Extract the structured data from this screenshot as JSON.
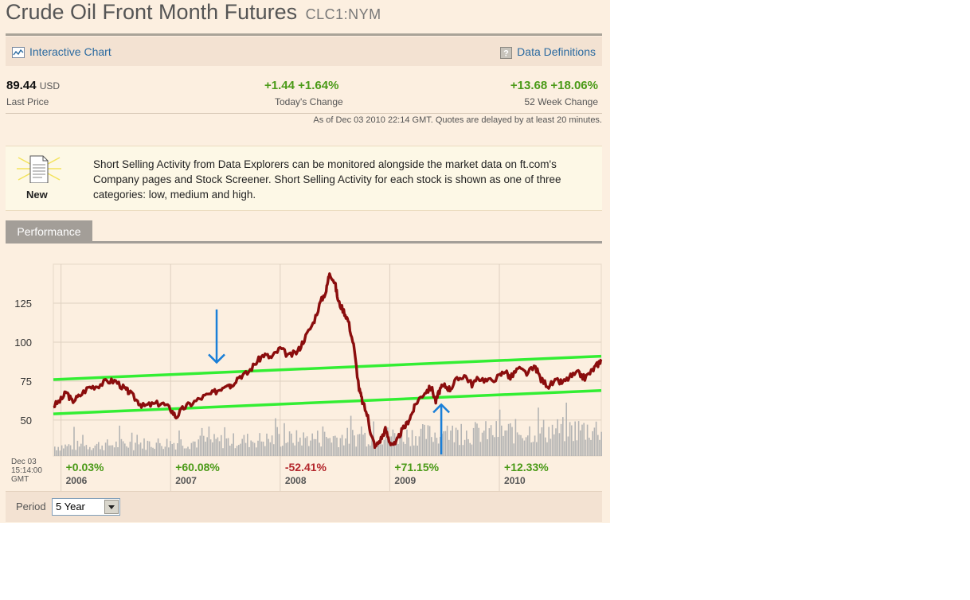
{
  "header": {
    "title": "Crude Oil Front Month Futures",
    "symbol": "CLC1:NYM"
  },
  "toolbar": {
    "interactive_chart": "Interactive Chart",
    "data_definitions": "Data Definitions"
  },
  "quote": {
    "last_price": "89.44",
    "currency": "USD",
    "last_price_label": "Last Price",
    "today_change": "+1.44 +1.64%",
    "today_change_label": "Today's Change",
    "week52_change": "+13.68 +18.06%",
    "week52_change_label": "52 Week Change",
    "as_of": "As of Dec 03 2010 22:14 GMT. Quotes are delayed by at least 20 minutes."
  },
  "news": {
    "badge": "New",
    "text": "Short Selling Activity from Data Explorers can be monitored alongside the market data on ft.com's Company pages and Stock Screener. Short Selling Activity for each stock is shown as one of three categories: low, medium and high."
  },
  "tabs": {
    "performance": "Performance"
  },
  "period": {
    "label": "Period",
    "value": "5 Year"
  },
  "colors": {
    "price_line": "#8b0d0d",
    "trend_lines": "#33ee33",
    "annotation_arrows": "#1a7fd8",
    "volume": "#b4b4b4",
    "gain": "#4a9a17",
    "loss": "#b3262b"
  },
  "chart_data": {
    "type": "line",
    "title": "",
    "xlabel": "",
    "ylabel": "",
    "ytick_labels": [
      "125",
      "100",
      "75",
      "50"
    ],
    "yticks": [
      125,
      100,
      75,
      50
    ],
    "ylim": [
      27,
      150
    ],
    "xlim": [
      2005.93,
      2010.93
    ],
    "grid": true,
    "x_start_label": [
      "Dec 03",
      "15:14:00",
      "GMT"
    ],
    "year_labels": [
      "2006",
      "2007",
      "2008",
      "2009",
      "2010"
    ],
    "year_positions": [
      2006.0,
      2007.0,
      2008.0,
      2009.0,
      2010.0
    ],
    "year_changes": [
      "+0.03%",
      "+60.08%",
      "-52.41%",
      "+71.15%",
      "+12.33%"
    ],
    "year_change_signs": [
      "up",
      "up",
      "down",
      "up",
      "up"
    ],
    "series": [
      {
        "x": [
          2005.93,
          2006.0,
          2006.05,
          2006.1,
          2006.16,
          2006.25,
          2006.33,
          2006.42,
          2006.5,
          2006.58,
          2006.62,
          2006.7,
          2006.75,
          2006.83,
          2006.92,
          2007.0,
          2007.05,
          2007.12,
          2007.2,
          2007.3,
          2007.38,
          2007.45,
          2007.52,
          2007.55,
          2007.62,
          2007.7,
          2007.78,
          2007.85,
          2007.92,
          2008.0,
          2008.08,
          2008.16,
          2008.22,
          2008.3,
          2008.37,
          2008.42,
          2008.45,
          2008.5,
          2008.53,
          2008.58,
          2008.62,
          2008.67,
          2008.72,
          2008.75,
          2008.8,
          2008.83,
          2008.87,
          2008.92,
          2008.96,
          2009.0,
          2009.05,
          2009.1,
          2009.15,
          2009.2,
          2009.25,
          2009.32,
          2009.38,
          2009.42,
          2009.46,
          2009.5,
          2009.55,
          2009.6,
          2009.68,
          2009.75,
          2009.82,
          2009.9,
          2010.0,
          2010.05,
          2010.1,
          2010.17,
          2010.25,
          2010.33,
          2010.38,
          2010.45,
          2010.52,
          2010.58,
          2010.65,
          2010.72,
          2010.78,
          2010.85,
          2010.9,
          2010.93
        ],
        "y": [
          59,
          63,
          68,
          62,
          65,
          71,
          72,
          75,
          75,
          70,
          68,
          62,
          59,
          60,
          61,
          57,
          52,
          58,
          61,
          65,
          67,
          70,
          74,
          72,
          78,
          80,
          87,
          92,
          90,
          96,
          91,
          94,
          102,
          112,
          126,
          133,
          145,
          138,
          126,
          120,
          114,
          98,
          70,
          62,
          52,
          40,
          33,
          38,
          44,
          36,
          34,
          42,
          47,
          54,
          62,
          68,
          71,
          62,
          70,
          72,
          70,
          75,
          79,
          73,
          77,
          75,
          78,
          82,
          77,
          83,
          80,
          84,
          76,
          72,
          75,
          74,
          78,
          80,
          77,
          82,
          86,
          89
        ],
        "y_note": "daily settle prices, USD per barrel"
      }
    ],
    "volume": "vertical bars along bottom of plot (no axis printed)",
    "trend_lines": [
      {
        "x": [
          2005.93,
          2010.93
        ],
        "y": [
          76,
          91
        ]
      },
      {
        "x": [
          2005.93,
          2010.93
        ],
        "y": [
          54,
          69
        ]
      }
    ],
    "annotations": [
      {
        "type": "arrow-down",
        "x": 2007.42,
        "y_from": 121,
        "y_to": 87
      },
      {
        "type": "arrow-up",
        "x": 2009.47,
        "y_from": 28,
        "y_to": 60
      }
    ]
  }
}
